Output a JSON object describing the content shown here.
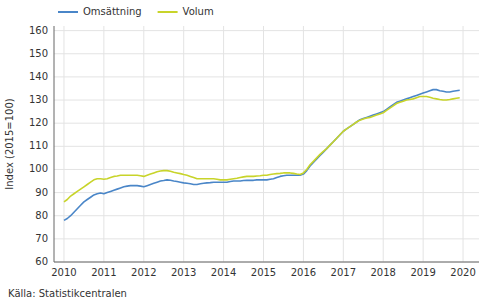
{
  "chart_data": {
    "type": "line",
    "ylabel": "Index (2015=100)",
    "annotation": "Källa: Statistikcentralen",
    "x": [
      2010,
      2010.0833333333333,
      2010.1666666666667,
      2010.25,
      2010.3333333333333,
      2010.4166666666667,
      2010.5,
      2010.5833333333333,
      2010.6666666666667,
      2010.75,
      2010.8333333333333,
      2010.9166666666667,
      2011,
      2011.0833333333333,
      2011.1666666666667,
      2011.25,
      2011.3333333333333,
      2011.4166666666667,
      2011.5,
      2011.5833333333333,
      2011.6666666666667,
      2011.75,
      2011.8333333333333,
      2011.9166666666667,
      2012,
      2012.0833333333333,
      2012.1666666666667,
      2012.25,
      2012.3333333333333,
      2012.4166666666667,
      2012.5,
      2012.5833333333333,
      2012.6666666666667,
      2012.75,
      2012.8333333333333,
      2012.9166666666667,
      2013,
      2013.0833333333333,
      2013.1666666666667,
      2013.25,
      2013.3333333333333,
      2013.4166666666667,
      2013.5,
      2013.5833333333333,
      2013.6666666666667,
      2013.75,
      2013.8333333333333,
      2013.9166666666667,
      2014,
      2014.0833333333333,
      2014.1666666666667,
      2014.25,
      2014.3333333333333,
      2014.4166666666667,
      2014.5,
      2014.5833333333333,
      2014.6666666666667,
      2014.75,
      2014.8333333333333,
      2014.9166666666667,
      2015,
      2015.0833333333333,
      2015.1666666666667,
      2015.25,
      2015.3333333333333,
      2015.4166666666667,
      2015.5,
      2015.5833333333333,
      2015.6666666666667,
      2015.75,
      2015.8333333333333,
      2015.9166666666667,
      2016,
      2016.0833333333333,
      2016.1666666666667,
      2016.25,
      2016.3333333333333,
      2016.4166666666667,
      2016.5,
      2016.5833333333333,
      2016.6666666666667,
      2016.75,
      2016.8333333333333,
      2016.9166666666667,
      2017,
      2017.0833333333333,
      2017.1666666666667,
      2017.25,
      2017.3333333333333,
      2017.4166666666667,
      2017.5,
      2017.5833333333333,
      2017.6666666666667,
      2017.75,
      2017.8333333333333,
      2017.9166666666667,
      2018,
      2018.0833333333333,
      2018.1666666666667,
      2018.25,
      2018.3333333333333,
      2018.4166666666667,
      2018.5,
      2018.5833333333333,
      2018.6666666666667,
      2018.75,
      2018.8333333333333,
      2018.9166666666667,
      2019,
      2019.0833333333333,
      2019.1666666666667,
      2019.25,
      2019.3333333333333,
      2019.4166666666667,
      2019.5,
      2019.5833333333333,
      2019.6666666666667,
      2019.75,
      2019.8333333333333,
      2019.9166666666667
    ],
    "series": [
      {
        "name": "Omsättning",
        "color": "#4a86c8",
        "values": [
          78.0,
          78.8,
          80.0,
          81.5,
          83.0,
          84.5,
          86.0,
          87.0,
          88.0,
          89.0,
          89.5,
          89.8,
          89.5,
          90.0,
          90.5,
          91.0,
          91.5,
          92.0,
          92.5,
          92.8,
          93.0,
          93.0,
          93.0,
          92.8,
          92.5,
          93.0,
          93.5,
          94.0,
          94.5,
          95.0,
          95.2,
          95.5,
          95.3,
          95.0,
          94.8,
          94.5,
          94.2,
          94.0,
          93.8,
          93.5,
          93.5,
          93.8,
          94.0,
          94.2,
          94.3,
          94.5,
          94.5,
          94.5,
          94.5,
          94.5,
          94.8,
          95.0,
          95.0,
          95.0,
          95.2,
          95.3,
          95.3,
          95.3,
          95.5,
          95.5,
          95.5,
          95.5,
          95.8,
          96.0,
          96.5,
          97.0,
          97.3,
          97.5,
          97.5,
          97.5,
          97.5,
          97.5,
          98.0,
          99.5,
          101.5,
          103.0,
          104.5,
          106.0,
          107.5,
          109.0,
          110.5,
          112.0,
          113.5,
          115.0,
          116.5,
          117.5,
          118.5,
          119.5,
          120.5,
          121.5,
          122.0,
          122.5,
          123.0,
          123.5,
          124.0,
          124.5,
          125.0,
          126.0,
          127.0,
          128.0,
          129.0,
          129.5,
          130.0,
          130.5,
          131.0,
          131.5,
          132.0,
          132.5,
          133.0,
          133.5,
          134.0,
          134.5,
          134.5,
          134.0,
          133.8,
          133.5,
          133.5,
          133.8,
          134.0,
          134.2
        ]
      },
      {
        "name": "Volum",
        "color": "#c8d42a",
        "values": [
          86.0,
          87.0,
          88.5,
          89.5,
          90.5,
          91.5,
          92.5,
          93.5,
          94.5,
          95.5,
          96.0,
          96.0,
          95.8,
          96.0,
          96.5,
          97.0,
          97.2,
          97.5,
          97.5,
          97.5,
          97.5,
          97.5,
          97.5,
          97.3,
          97.0,
          97.5,
          98.0,
          98.5,
          99.0,
          99.3,
          99.5,
          99.5,
          99.2,
          98.8,
          98.5,
          98.2,
          97.8,
          97.5,
          97.0,
          96.5,
          96.0,
          96.0,
          96.0,
          96.0,
          96.0,
          96.0,
          95.8,
          95.5,
          95.5,
          95.5,
          95.8,
          96.0,
          96.2,
          96.5,
          96.8,
          97.0,
          97.0,
          97.0,
          97.2,
          97.3,
          97.5,
          97.5,
          97.8,
          98.0,
          98.2,
          98.3,
          98.5,
          98.5,
          98.5,
          98.3,
          98.0,
          97.8,
          98.5,
          100.0,
          102.0,
          103.5,
          105.0,
          106.5,
          107.8,
          109.0,
          110.5,
          112.0,
          113.5,
          115.0,
          116.5,
          117.5,
          118.5,
          119.5,
          120.5,
          121.3,
          121.8,
          122.2,
          122.5,
          123.0,
          123.5,
          124.0,
          124.5,
          125.5,
          126.5,
          127.5,
          128.5,
          129.0,
          129.5,
          130.0,
          130.2,
          130.5,
          131.0,
          131.5,
          131.5,
          131.5,
          131.2,
          130.8,
          130.5,
          130.2,
          130.0,
          130.0,
          130.2,
          130.5,
          130.8,
          131.0
        ]
      }
    ],
    "xlim": [
      2009.75,
      2020.4
    ],
    "xticks": [
      2010,
      2011,
      2012,
      2013,
      2014,
      2015,
      2016,
      2017,
      2018,
      2019,
      2020
    ],
    "ylim": [
      60,
      162
    ],
    "yticks": [
      60,
      70,
      80,
      90,
      100,
      110,
      120,
      130,
      140,
      150,
      160
    ],
    "grid": true,
    "legend": "upper-left"
  }
}
